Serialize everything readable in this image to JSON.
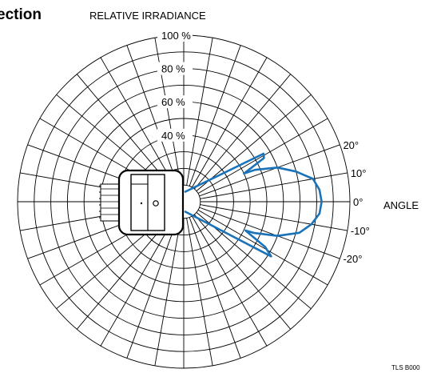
{
  "heading": "ection",
  "ref": "TLS B000",
  "chart_data": {
    "type": "polar",
    "title": "RELATIVE IRRADIANCE",
    "radial_label": "RELATIVE IRRADIANCE",
    "angular_label": "ANGLE",
    "radial_ticks": [
      "100 %",
      "80 %",
      "60 %",
      "40 %"
    ],
    "radial_tick_values": [
      100,
      80,
      60,
      40
    ],
    "angle_ticks": [
      "20°",
      "10°",
      "0°",
      "-10°",
      "-20°"
    ],
    "angle_tick_values": [
      20,
      10,
      0,
      -10,
      -20
    ],
    "rlim": [
      0,
      100
    ],
    "grid": true,
    "series": [
      {
        "color": "#1a73b8",
        "points": [
          {
            "angle": 31,
            "r": 56
          },
          {
            "angle": 28.5,
            "r": 55
          },
          {
            "angle": 25,
            "r": 40
          },
          {
            "angle": 24,
            "r": 47
          },
          {
            "angle": 20,
            "r": 60
          },
          {
            "angle": 15,
            "r": 70
          },
          {
            "angle": 10,
            "r": 79
          },
          {
            "angle": 5,
            "r": 82
          },
          {
            "angle": 0,
            "r": 83
          },
          {
            "angle": -5,
            "r": 82
          },
          {
            "angle": -10,
            "r": 78
          },
          {
            "angle": -15,
            "r": 72
          },
          {
            "angle": -20,
            "r": 60
          },
          {
            "angle": -24,
            "r": 46
          },
          {
            "angle": -25,
            "r": 41
          },
          {
            "angle": -29,
            "r": 56
          },
          {
            "angle": -32,
            "r": 62
          }
        ]
      }
    ]
  }
}
